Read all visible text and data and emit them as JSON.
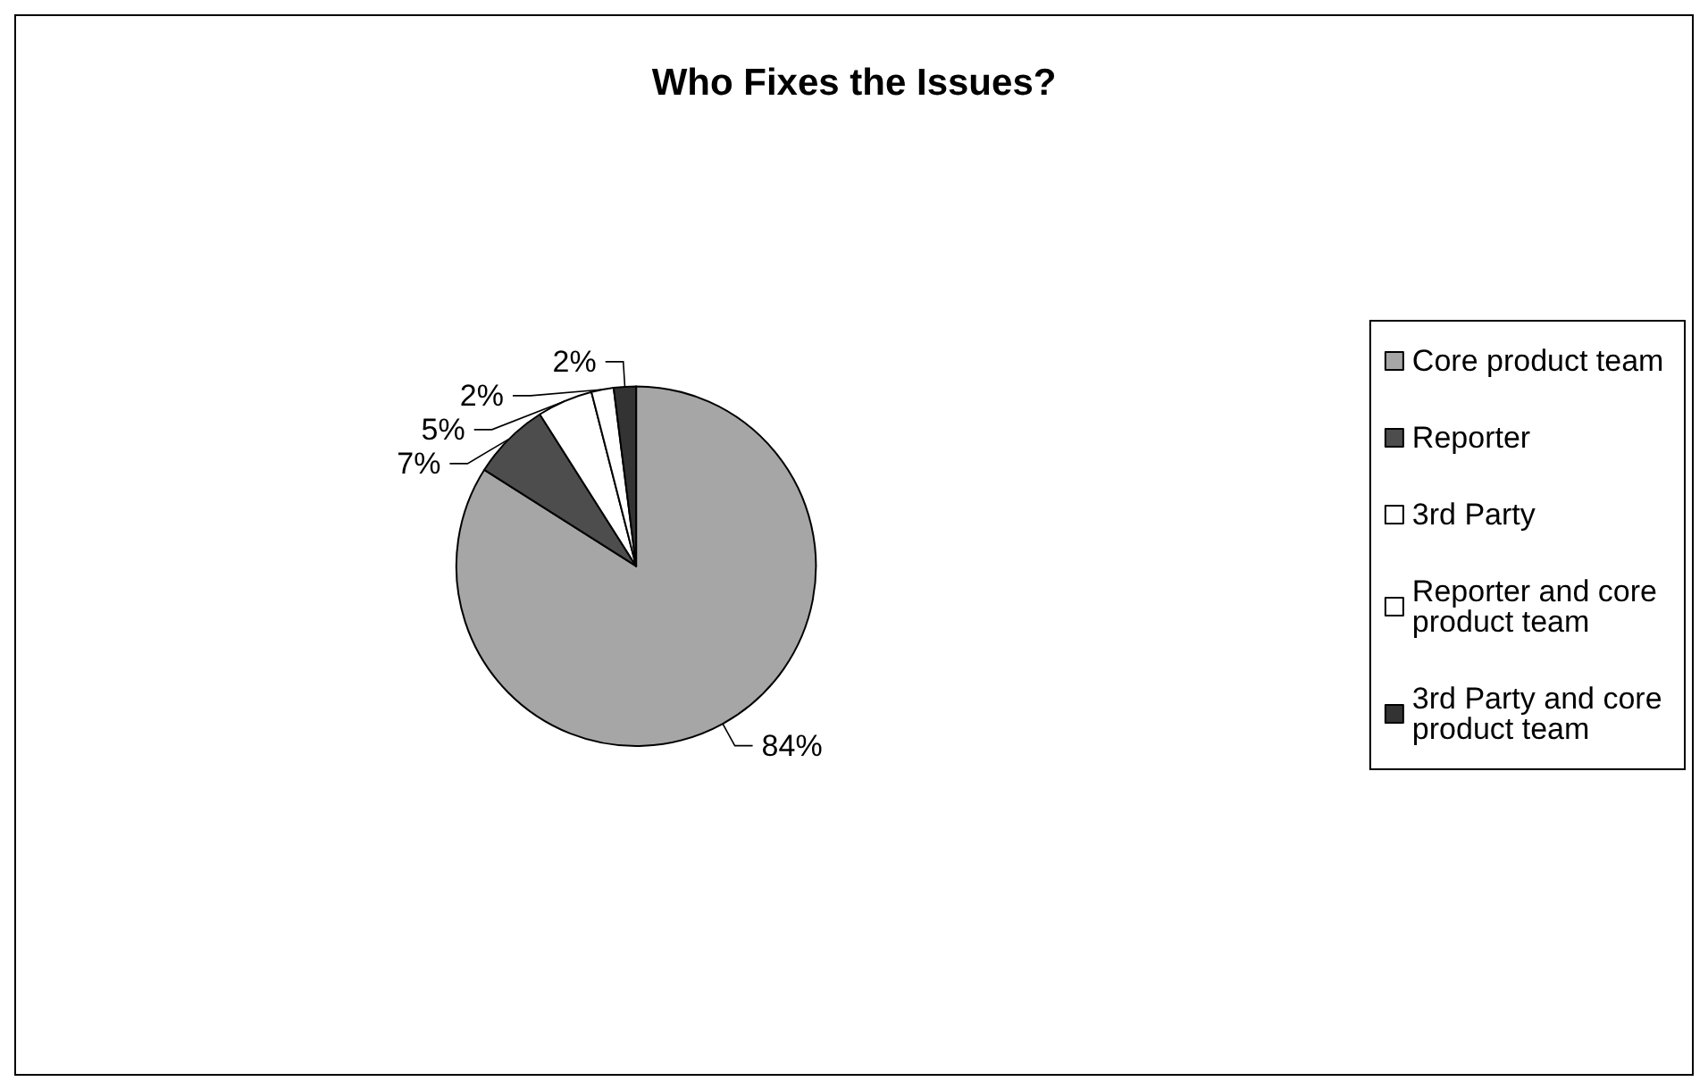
{
  "chart_data": {
    "type": "pie",
    "title": "Who Fixes the Issues?",
    "categories": [
      "Core product team",
      "Reporter",
      "3rd Party",
      "Reporter and core product team",
      "3rd Party and core product team"
    ],
    "values": [
      84,
      7,
      5,
      2,
      2
    ],
    "value_labels": [
      "84%",
      "7%",
      "5%",
      "2%",
      "2%"
    ],
    "colors": [
      "#a6a6a6",
      "#4d4d4d",
      "#ffffff",
      "#ffffff",
      "#333333"
    ],
    "legend": "right"
  }
}
